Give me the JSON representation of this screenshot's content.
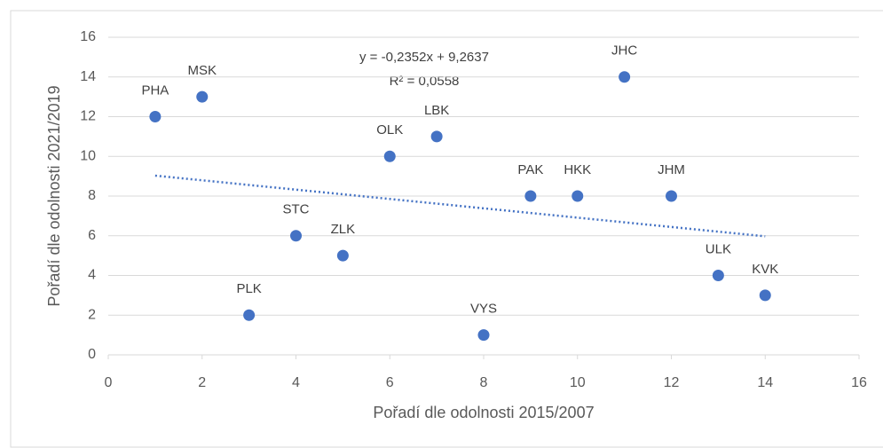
{
  "chart_data": {
    "type": "scatter",
    "xlabel": "Pořadí dle odolnosti 2015/2007",
    "ylabel": "Pořadí dle odolnosti 2021/2019",
    "labels": [
      "PHA",
      "MSK",
      "PLK",
      "STC",
      "ZLK",
      "OLK",
      "LBK",
      "VYS",
      "PAK",
      "HKK",
      "JHC",
      "JHM",
      "ULK",
      "KVK"
    ],
    "x": [
      1,
      2,
      3,
      4,
      5,
      6,
      7,
      8,
      9,
      10,
      11,
      12,
      13,
      14
    ],
    "y": [
      12,
      13,
      2,
      6,
      5,
      10,
      11,
      1,
      8,
      8,
      14,
      8,
      4,
      3
    ],
    "color": "#4472c4",
    "trendline": {
      "equation": "y = -0,2352x + 9,2637",
      "r2": "R² = 0,0558",
      "style": "dotted"
    },
    "xlim": [
      0,
      16
    ],
    "xticks": [
      0,
      2,
      4,
      6,
      8,
      10,
      12,
      14,
      16
    ],
    "ylim": [
      0,
      16
    ],
    "yticks": [
      0,
      2,
      4,
      6,
      8,
      10,
      12,
      14,
      16
    ],
    "grid": true
  }
}
